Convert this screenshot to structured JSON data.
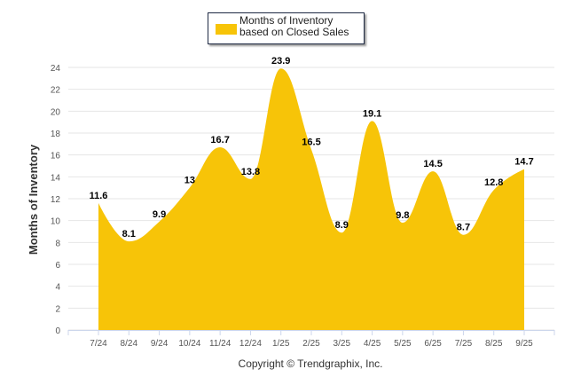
{
  "chart_data": {
    "type": "area",
    "title": "",
    "legend": {
      "label": "Months of Inventory based on Closed Sales",
      "placement": "top-center"
    },
    "ylabel": "Months of Inventory",
    "xlabel": "",
    "categories": [
      "7/24",
      "8/24",
      "9/24",
      "10/24",
      "11/24",
      "12/24",
      "1/25",
      "2/25",
      "3/25",
      "4/25",
      "5/25",
      "6/25",
      "7/25",
      "8/25",
      "9/25"
    ],
    "series": [
      {
        "name": "Months of Inventory based on Closed Sales",
        "values": [
          11.6,
          8.1,
          9.9,
          13,
          16.7,
          13.8,
          23.9,
          16.5,
          8.9,
          19.1,
          9.8,
          14.5,
          8.7,
          12.8,
          14.7
        ],
        "color": "#f7c408"
      }
    ],
    "data_labels": [
      "11.6",
      "8.1",
      "9.9",
      "13",
      "16.7",
      "13.8",
      "23.9",
      "16.5",
      "8.9",
      "19.1",
      "9.8",
      "14.5",
      "8.7",
      "12.8",
      "14.7"
    ],
    "ylim": [
      0,
      24
    ],
    "yticks": [
      "0",
      "2",
      "4",
      "6",
      "8",
      "10",
      "12",
      "14",
      "16",
      "18",
      "20",
      "22",
      "24"
    ],
    "grid": true,
    "credit": "Copyright © Trendgraphix, Inc."
  }
}
